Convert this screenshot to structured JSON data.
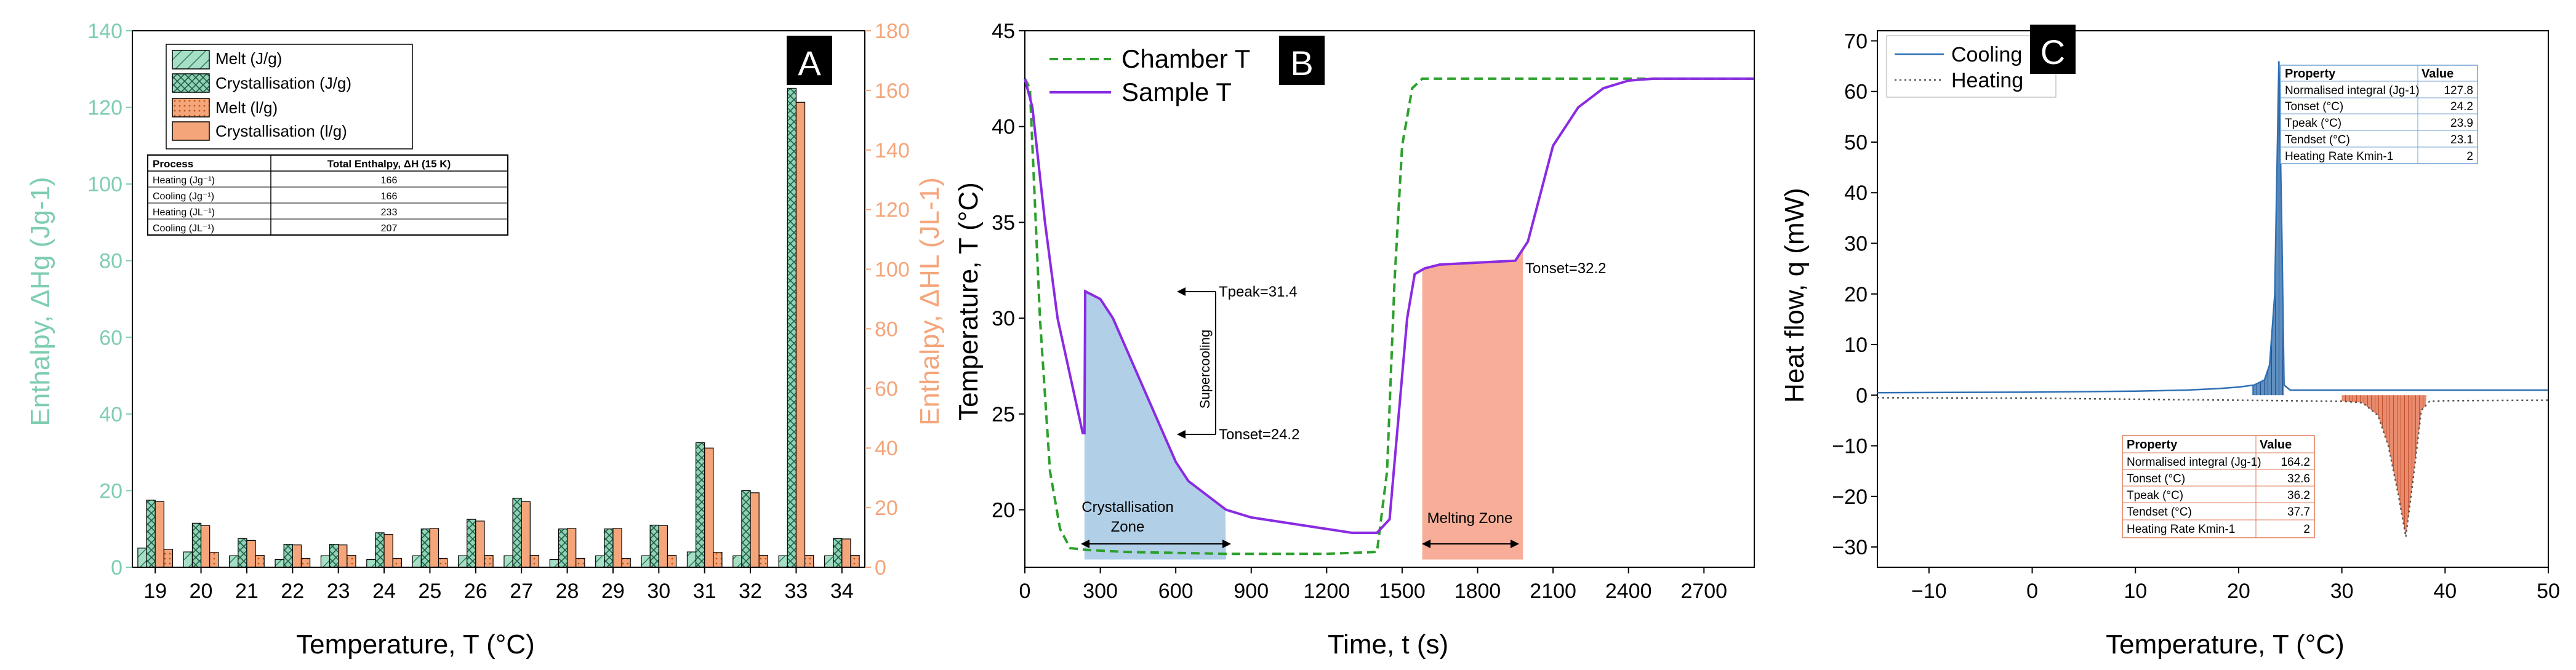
{
  "colors": {
    "green": "#7fcdb0",
    "green_dark": "#2e7d5b",
    "orange": "#f4a57a",
    "orange_dark": "#d2691e",
    "purple": "#8a2be2",
    "chamber_green": "#2ca02c",
    "blue_fill": "#a9cbe6",
    "red_fill": "#f6a48c",
    "cool_line": "#2f6fb3",
    "heat_line": "#555555",
    "axis": "#000000"
  },
  "chart_data": [
    {
      "panel": "A",
      "type": "bar",
      "categories": [
        "19",
        "20",
        "21",
        "22",
        "23",
        "24",
        "25",
        "26",
        "27",
        "28",
        "29",
        "30",
        "31",
        "32",
        "33",
        "34"
      ],
      "xlabel": "Temperature, T (°C)",
      "ylabel_left": "Enthalpy, ΔHg (Jg-1)",
      "ylabel_right": "Enthalpy, ΔHL (JL-1)",
      "ylim_left": [
        0,
        140
      ],
      "ylim_right": [
        0,
        180
      ],
      "yticks_left": [
        0,
        20,
        40,
        60,
        80,
        100,
        120,
        140
      ],
      "yticks_right": [
        0,
        20,
        40,
        60,
        80,
        100,
        120,
        140,
        160,
        180
      ],
      "series": [
        {
          "name": "Melt (J/g)",
          "axis": "left",
          "values": [
            5,
            4,
            3,
            2,
            3,
            2,
            3,
            3,
            3,
            2,
            3,
            3,
            4,
            3,
            3,
            3
          ]
        },
        {
          "name": "Crystallisation (J/g)",
          "axis": "left",
          "values": [
            17.5,
            11.5,
            7.5,
            6,
            6,
            9,
            10,
            12.5,
            18,
            10,
            10,
            11,
            32.5,
            20,
            125,
            7.5
          ]
        },
        {
          "name": "Melt (l/g)",
          "axis": "right",
          "values": [
            6,
            5,
            4,
            3,
            4,
            3,
            3,
            4,
            4,
            3,
            3,
            4,
            5,
            4,
            4,
            4
          ]
        },
        {
          "name": "Crystallisation (l/g)",
          "axis": "right",
          "values": [
            22,
            14,
            9,
            7.5,
            7.5,
            11,
            13,
            15.5,
            22,
            13,
            13,
            14,
            40,
            25,
            156,
            9.5
          ]
        }
      ],
      "table": {
        "headers": [
          "Process",
          "Total Enthalpy, ΔH (15 K)"
        ],
        "rows": [
          [
            "Heating (Jg⁻¹)",
            "166"
          ],
          [
            "Cooling (Jg⁻¹)",
            "166"
          ],
          [
            "Heating (JL⁻¹)",
            "233"
          ],
          [
            "Cooling (JL⁻¹)",
            "207"
          ]
        ]
      }
    },
    {
      "panel": "B",
      "type": "line",
      "xlabel": "Time, t (s)",
      "ylabel": "Temperature, T (°C)",
      "xlim": [
        0,
        2900
      ],
      "ylim": [
        17,
        45
      ],
      "xticks": [
        0,
        300,
        600,
        900,
        1200,
        1500,
        1800,
        2100,
        2400,
        2700
      ],
      "yticks": [
        20,
        25,
        30,
        35,
        40,
        45
      ],
      "series": [
        {
          "name": "Chamber T",
          "style": "dashed",
          "x": [
            0,
            20,
            60,
            100,
            140,
            180,
            250,
            400,
            800,
            1200,
            1400,
            1440,
            1470,
            1500,
            1540,
            1580,
            1700,
            2000,
            2400,
            2900
          ],
          "y": [
            42.5,
            42,
            30,
            22,
            19,
            18,
            17.9,
            17.8,
            17.7,
            17.7,
            17.8,
            22,
            32,
            39,
            42,
            42.5,
            42.5,
            42.5,
            42.5,
            42.5
          ]
        },
        {
          "name": "Sample T",
          "style": "solid",
          "x": [
            0,
            30,
            80,
            130,
            180,
            230,
            237,
            240,
            300,
            350,
            400,
            450,
            500,
            550,
            600,
            650,
            700,
            800,
            900,
            1000,
            1100,
            1200,
            1300,
            1400,
            1450,
            1480,
            1520,
            1550,
            1590,
            1650,
            1800,
            1950,
            2000,
            2050,
            2100,
            2200,
            2300,
            2400,
            2500,
            2900
          ],
          "y": [
            42.5,
            41,
            35,
            30,
            27,
            24,
            24,
            31.4,
            31,
            30,
            28.5,
            27,
            25.5,
            24,
            22.5,
            21.5,
            21,
            20,
            19.6,
            19.4,
            19.2,
            19,
            18.8,
            18.8,
            19.5,
            24,
            30,
            32.3,
            32.6,
            32.8,
            32.9,
            33,
            34,
            36.5,
            39,
            41,
            42,
            42.4,
            42.5,
            42.5
          ]
        }
      ],
      "annotations": {
        "tpeak": "Tpeak=31.4",
        "tonset_cool": "Tonset=24.2",
        "tonset_melt": "Tonset=32.2",
        "supercooling": "Supercooling",
        "cryst_zone_line1": "Crystallisation",
        "cryst_zone_line2": "Zone",
        "melt_zone": "Melting Zone"
      },
      "zones": {
        "crystallisation_t": [
          237,
          800
        ],
        "melting_t": [
          1580,
          1980
        ]
      }
    },
    {
      "panel": "C",
      "type": "line",
      "xlabel": "Temperature, T (°C)",
      "ylabel": "Heat flow, q (mW)",
      "xlim": [
        -15,
        50
      ],
      "ylim": [
        -34,
        72
      ],
      "xticks": [
        -10,
        0,
        10,
        20,
        30,
        40,
        50
      ],
      "yticks": [
        -30,
        -20,
        -10,
        0,
        10,
        20,
        30,
        40,
        50,
        60,
        70
      ],
      "series": [
        {
          "name": "Cooling",
          "style": "solid",
          "x": [
            -15,
            0,
            10,
            15,
            18,
            20,
            21.5,
            22.5,
            23,
            23.5,
            23.9,
            24.2,
            24.4,
            25,
            30,
            40,
            50
          ],
          "y": [
            0.5,
            0.6,
            0.8,
            1,
            1.3,
            1.6,
            2,
            3,
            6,
            20,
            66,
            30,
            2,
            1,
            1,
            1,
            1
          ]
        },
        {
          "name": "Heating",
          "style": "dotted",
          "x": [
            -15,
            0,
            20,
            30,
            32,
            33.5,
            34.5,
            35.5,
            36.2,
            37,
            37.7,
            38.5,
            40,
            50
          ],
          "y": [
            -0.5,
            -0.6,
            -1,
            -1.2,
            -1.5,
            -4,
            -10,
            -20,
            -28,
            -15,
            -3,
            -1.2,
            -1.1,
            -1
          ]
        }
      ],
      "table_cooling": {
        "headers": [
          "Property",
          "Value"
        ],
        "rows": [
          [
            "Normalised integral (Jg-1)",
            "127.8"
          ],
          [
            "Tonset (°C)",
            "24.2"
          ],
          [
            "Tpeak (°C)",
            "23.9"
          ],
          [
            "Tendset (°C)",
            "23.1"
          ],
          [
            "Heating Rate Kmin-1",
            "2"
          ]
        ]
      },
      "table_heating": {
        "headers": [
          "Property",
          "Value"
        ],
        "rows": [
          [
            "Normalised integral (Jg-1)",
            "164.2"
          ],
          [
            "Tonset (°C)",
            "32.6"
          ],
          [
            "Tpeak (°C)",
            "36.2"
          ],
          [
            "Tendset (°C)",
            "37.7"
          ],
          [
            "Heating Rate Kmin-1",
            "2"
          ]
        ]
      }
    }
  ],
  "panels": {
    "a_label": "A",
    "b_label": "B",
    "c_label": "C"
  }
}
